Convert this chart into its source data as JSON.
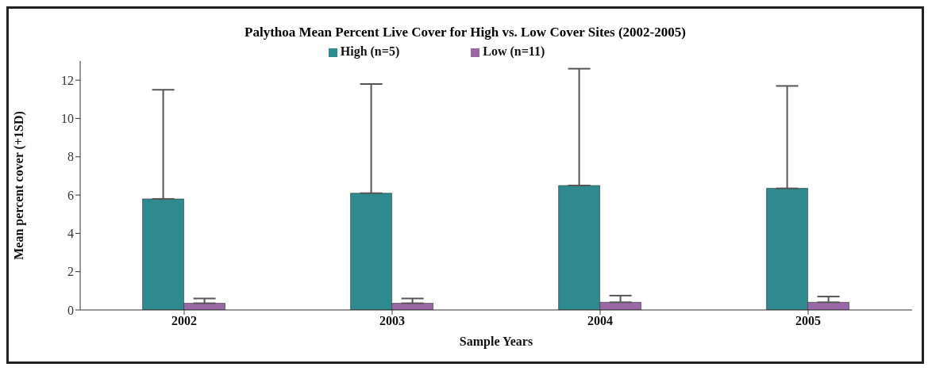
{
  "chart_data": {
    "type": "bar",
    "title": "Palythoa Mean Percent Live Cover for High vs. Low Cover Sites (2002-2005)",
    "xlabel": "Sample Years",
    "ylabel": "Mean percent cover (+1SD)",
    "categories": [
      "2002",
      "2003",
      "2004",
      "2005"
    ],
    "series": [
      {
        "name": "High (n=5)",
        "color": "#2e8a8e",
        "values": [
          5.8,
          6.1,
          6.5,
          6.35
        ],
        "errors": [
          [
            5.8,
            11.5
          ],
          [
            6.1,
            11.8
          ],
          [
            6.5,
            12.6
          ],
          [
            6.35,
            11.7
          ]
        ]
      },
      {
        "name": "Low (n=11)",
        "color": "#9a68a6",
        "values": [
          0.35,
          0.35,
          0.4,
          0.4
        ],
        "errors": [
          [
            0.35,
            0.6
          ],
          [
            0.35,
            0.6
          ],
          [
            0.4,
            0.75
          ],
          [
            0.4,
            0.7
          ]
        ]
      }
    ],
    "ylim": [
      0,
      13
    ],
    "yticks": [
      0,
      2,
      4,
      6,
      8,
      10,
      12
    ],
    "legend": "top",
    "grid": false
  }
}
